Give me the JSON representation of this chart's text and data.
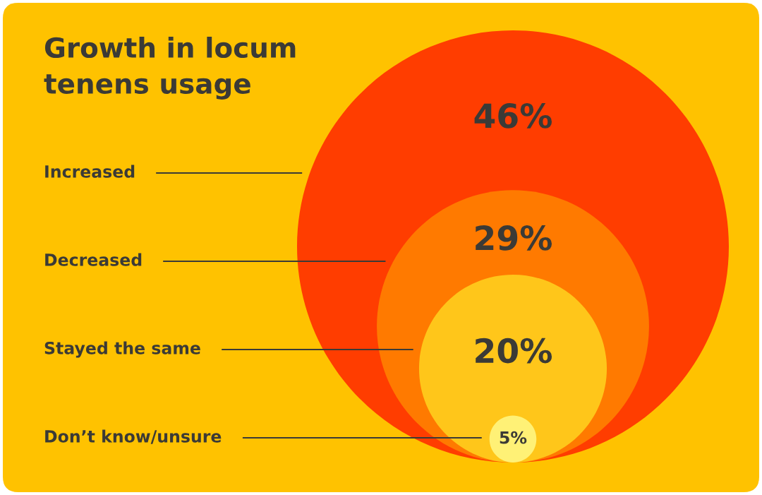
{
  "chart_data": {
    "type": "other",
    "title": "Growth in locum tenens usage",
    "categories": [
      "Increased",
      "Decreased",
      "Stayed the same",
      "Don’t know/unsure"
    ],
    "values": [
      46,
      29,
      20,
      5
    ],
    "value_labels": [
      "46%",
      "29%",
      "20%",
      "5%"
    ],
    "colors": [
      "#ff3d00",
      "#ff7a00",
      "#ffc61a",
      "#fff176"
    ]
  }
}
